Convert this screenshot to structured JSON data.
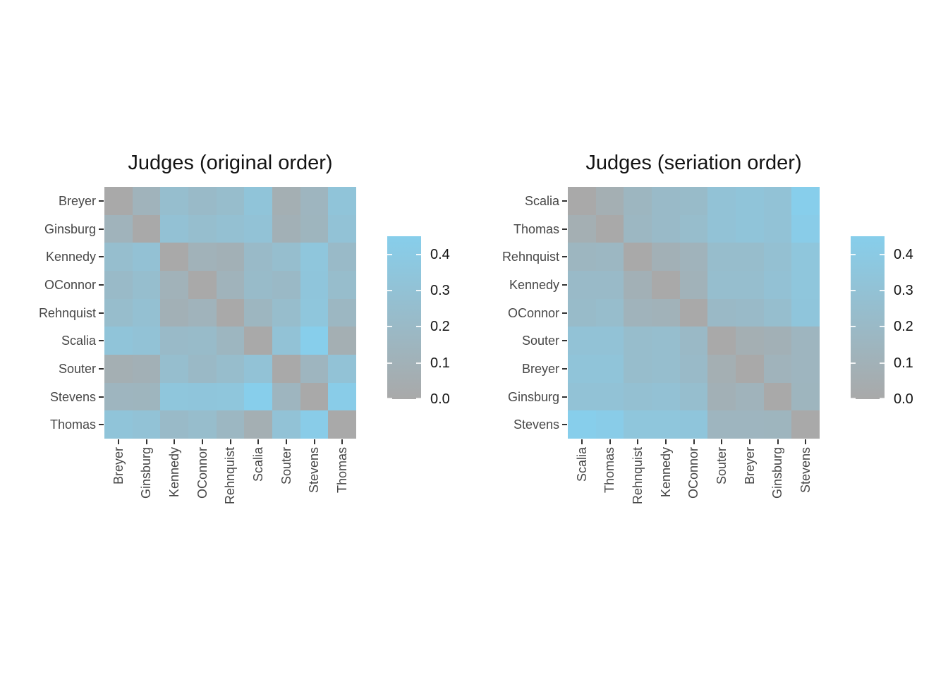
{
  "page": {
    "background": "#FFFFFF"
  },
  "chart_data": {
    "type": "heatmap",
    "judges": [
      "Breyer",
      "Ginsburg",
      "Kennedy",
      "OConnor",
      "Rehnquist",
      "Scalia",
      "Souter",
      "Stevens",
      "Thomas"
    ],
    "matrix": [
      [
        0.0,
        0.12,
        0.25,
        0.21,
        0.24,
        0.33,
        0.07,
        0.15,
        0.33
      ],
      [
        0.12,
        0.0,
        0.29,
        0.25,
        0.28,
        0.31,
        0.09,
        0.14,
        0.31
      ],
      [
        0.25,
        0.29,
        0.0,
        0.11,
        0.09,
        0.21,
        0.25,
        0.35,
        0.21
      ],
      [
        0.21,
        0.25,
        0.11,
        0.0,
        0.12,
        0.22,
        0.2,
        0.34,
        0.24
      ],
      [
        0.24,
        0.28,
        0.09,
        0.12,
        0.0,
        0.16,
        0.24,
        0.35,
        0.17
      ],
      [
        0.33,
        0.31,
        0.21,
        0.22,
        0.16,
        0.0,
        0.31,
        0.45,
        0.07
      ],
      [
        0.07,
        0.09,
        0.25,
        0.2,
        0.24,
        0.31,
        0.0,
        0.15,
        0.31
      ],
      [
        0.15,
        0.14,
        0.35,
        0.34,
        0.35,
        0.45,
        0.15,
        0.0,
        0.43
      ],
      [
        0.33,
        0.31,
        0.21,
        0.24,
        0.17,
        0.07,
        0.31,
        0.43,
        0.0
      ]
    ],
    "panels": [
      {
        "id": "original",
        "title": "Judges (original order)",
        "order": [
          "Breyer",
          "Ginsburg",
          "Kennedy",
          "OConnor",
          "Rehnquist",
          "Scalia",
          "Souter",
          "Stevens",
          "Thomas"
        ]
      },
      {
        "id": "seriation",
        "title": "Judges (seriation order)",
        "order": [
          "Scalia",
          "Thomas",
          "Rehnquist",
          "Kennedy",
          "OConnor",
          "Souter",
          "Breyer",
          "Ginsburg",
          "Stevens"
        ]
      }
    ],
    "scale": {
      "min": 0.0,
      "max": 0.45,
      "low_color": "#A9A9A9",
      "high_color": "#87CEEB",
      "legend_ticks": [
        {
          "value": 0.0,
          "label": "0.0"
        },
        {
          "value": 0.1,
          "label": "0.1"
        },
        {
          "value": 0.2,
          "label": "0.2"
        },
        {
          "value": 0.3,
          "label": "0.3"
        },
        {
          "value": 0.4,
          "label": "0.4"
        }
      ],
      "legend_position": "right",
      "grid": false
    }
  }
}
